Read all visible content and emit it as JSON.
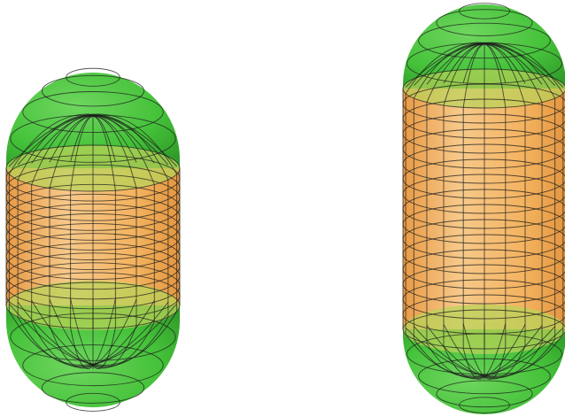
{
  "colors": {
    "background": "#ffffff",
    "cap_fill": "#45c23a",
    "cap_dark": "#2f9a28",
    "body_fill": "#f3b25e",
    "body_light": "#f7c98a",
    "overlap_fill": "#b9d35a",
    "wire": "#1c1c1c"
  },
  "capsules": [
    {
      "name": "short-capsule",
      "cylinder_rings": 14,
      "cap_rings": 4,
      "meridians": 12
    },
    {
      "name": "tall-capsule",
      "cylinder_rings": 16,
      "cap_rings": 4,
      "meridians": 12
    }
  ]
}
